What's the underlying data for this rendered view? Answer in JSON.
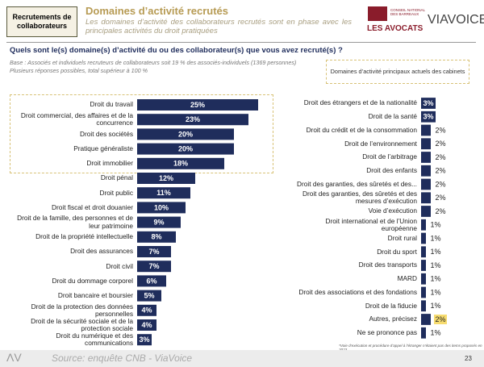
{
  "header": {
    "section": "Recrutements de collaborateurs",
    "title": "Domaines d’activité recrutés",
    "subtitle": "Les domaines d’activité des collaborateurs recrutés sont en phase avec les principales activités du droit pratiquées",
    "logo_cnb": "CONSEIL NATIONAL DES BARREAUX",
    "logo_avocats": "LES AVOCATS",
    "logo_viavoice": "VIAVOICE"
  },
  "question": "Quels sont le(s) domaine(s) d’activité du ou des collaborateur(s) que vous avez recruté(s) ?",
  "base": "Base : Associés et individuels recruteurs de collaborateurs soit 19 % des associés-individuels (1369 personnes)",
  "multiple": "Plusieurs réponses possibles, total supérieur à 100 %",
  "legend_box": "Domaines d’activité principaux actuels des cabinets",
  "footnote": "*Voie d’exécution et procédure d’appel à l’étranger n’étaient pas des items proposés en 2023",
  "footer": {
    "source": "Source: enquête CNB - ViaVoice",
    "page": "23"
  },
  "chart_data": [
    {
      "type": "bar",
      "orientation": "horizontal",
      "color": "#1f2d5c",
      "categories": [
        "Droit du travail",
        "Droit commercial, des affaires et de la concurrence",
        "Droit des sociétés",
        "Pratique généraliste",
        "Droit immobilier",
        "Droit pénal",
        "Droit public",
        "Droit fiscal et droit douanier",
        "Droit de la famille, des personnes et de leur patrimoine",
        "Droit de la propriété intellectuelle",
        "Droit des assurances",
        "Droit civil",
        "Droit du dommage corporel",
        "Droit bancaire et boursier",
        "Droit de la protection des données personnelles",
        "Droit de la sécurité sociale et de la protection sociale",
        "Droit du numérique et des communications"
      ],
      "values": [
        25,
        23,
        20,
        20,
        18,
        12,
        11,
        10,
        9,
        8,
        7,
        7,
        6,
        5,
        4,
        4,
        3
      ],
      "value_labels": [
        "25%",
        "23%",
        "20%",
        "20%",
        "18%",
        "12%",
        "11%",
        "10%",
        "9%",
        "8%",
        "7%",
        "7%",
        "6%",
        "5%",
        "4%",
        "4%",
        "3%"
      ]
    },
    {
      "type": "bar",
      "orientation": "horizontal",
      "color": "#1f2d5c",
      "highlight_color": "#f7dc6f",
      "highlight": [
        16
      ],
      "categories": [
        "Droit des étrangers et de la nationalité",
        "Droit de la santé",
        "Droit du crédit et de la consommation",
        "Droit de l’environnement",
        "Droit de l’arbitrage",
        "Droit des enfants",
        "Droit des garanties, des sûretés et des...",
        "Droit des garanties, des sûretés et des mesures d’exécution",
        "Voie d’exécution",
        "Droit international et de l’Union européenne",
        "Droit rural",
        "Droit du sport",
        "Droit des transports",
        "MARD",
        "Droit des associations et des fondations",
        "Droit de la fiducie",
        "Autres, précisez",
        "Ne se prononce pas"
      ],
      "values": [
        3,
        3,
        2,
        2,
        2,
        2,
        2,
        2,
        2,
        1,
        1,
        1,
        1,
        1,
        1,
        1,
        2,
        1
      ],
      "value_labels": [
        "3%",
        "3%",
        "2%",
        "2%",
        "2%",
        "2%",
        "2%",
        "2%",
        "2%",
        "1%",
        "1%",
        "1%",
        "1%",
        "1%",
        "1%",
        "1%",
        "2%",
        "1%"
      ]
    }
  ]
}
